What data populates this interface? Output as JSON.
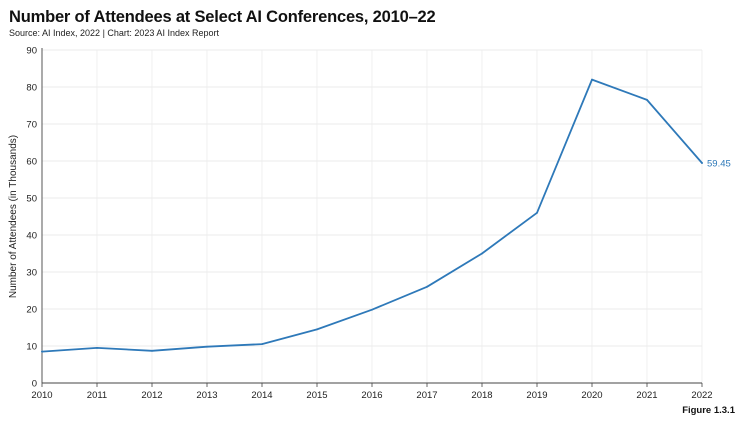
{
  "header": {
    "title": "Number of Attendees at Select AI Conferences, 2010–22",
    "source": "Source: AI Index, 2022 | Chart: 2023 AI Index Report"
  },
  "figure_label": "Figure 1.3.1",
  "chart_data": {
    "type": "line",
    "ylabel": "Number of Attendees (in Thousands)",
    "xlabel": "",
    "x": [
      2010,
      2011,
      2012,
      2013,
      2014,
      2015,
      2016,
      2017,
      2018,
      2019,
      2020,
      2021,
      2022
    ],
    "series": [
      {
        "values": [
          8.5,
          9.5,
          8.7,
          9.8,
          10.5,
          14.5,
          19.8,
          26.0,
          35.0,
          46.0,
          82.0,
          76.5,
          59.45
        ],
        "color": "#2e79b9"
      }
    ],
    "end_label": "59.45",
    "ylim": [
      0,
      90
    ],
    "yticks": [
      0,
      10,
      20,
      30,
      40,
      50,
      60,
      70,
      80,
      90
    ],
    "grid": true
  }
}
